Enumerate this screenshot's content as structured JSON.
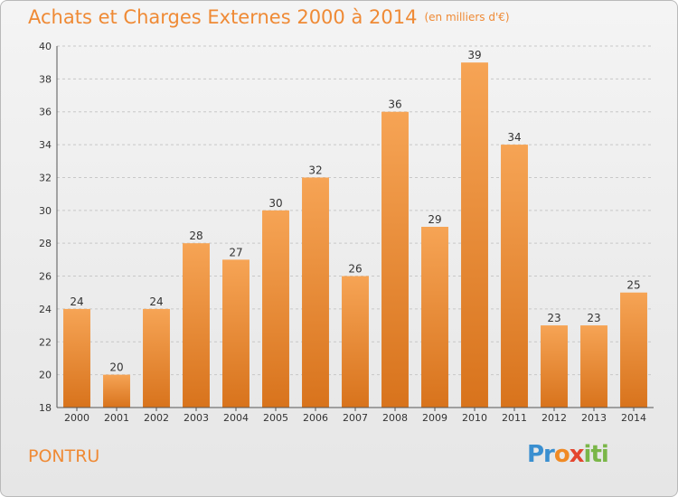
{
  "header": {
    "title": "Achats et Charges Externes 2000 à 2014",
    "unit": "(en milliers d'€)"
  },
  "footer": {
    "commune": "PONTRU",
    "logo_text": "Proxiti"
  },
  "colors": {
    "title": "#ef8a35",
    "bar_top": "#f6a455",
    "bar_bottom": "#d8731c",
    "grid": "#c8c8c8"
  },
  "chart_data": {
    "type": "bar",
    "title": "Achats et Charges Externes 2000 à 2014",
    "subtitle": "(en milliers d'€)",
    "xlabel": "",
    "ylabel": "",
    "categories": [
      "2000",
      "2001",
      "2002",
      "2003",
      "2004",
      "2005",
      "2006",
      "2007",
      "2008",
      "2009",
      "2010",
      "2011",
      "2012",
      "2013",
      "2014"
    ],
    "values": [
      24,
      20,
      24,
      28,
      27,
      30,
      32,
      26,
      36,
      29,
      39,
      34,
      23,
      23,
      25
    ],
    "ylim": [
      18,
      40
    ],
    "yticks": [
      18,
      20,
      22,
      24,
      26,
      28,
      30,
      32,
      34,
      36,
      38,
      40
    ],
    "grid": true,
    "data_labels": true
  }
}
